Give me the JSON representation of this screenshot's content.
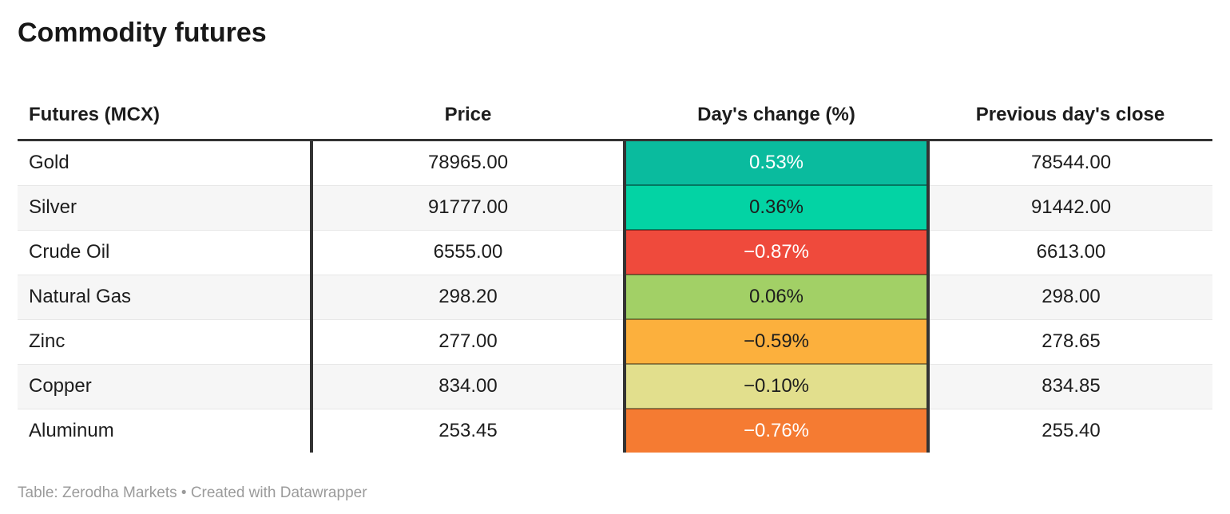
{
  "page": {
    "title": "Commodity futures",
    "footer": {
      "source": "Table: Zerodha Markets",
      "separator": "•",
      "credit": "Created with Datawrapper"
    }
  },
  "colors": {
    "header_border": "#333333",
    "column_divider": "#333333",
    "zebra_row": "#f6f6f6",
    "body_text": "#1d1d1d",
    "footer_text": "#9b9b9b",
    "positive_strong": "#0abb9e",
    "negative_strong": "#ef4a3c"
  },
  "table": {
    "columns": [
      {
        "label": "Futures (MCX)"
      },
      {
        "label": "Price"
      },
      {
        "label": "Day's change (%)"
      },
      {
        "label": "Previous day's close"
      }
    ],
    "rows": [
      {
        "name": "Gold",
        "price": "78965.00",
        "change": "0.53%",
        "change_bg": "#0abb9e",
        "change_fg": "#ffffff",
        "prev_close": "78544.00"
      },
      {
        "name": "Silver",
        "price": "91777.00",
        "change": "0.36%",
        "change_bg": "#03d3a4",
        "change_fg": "#1d1d1d",
        "prev_close": "91442.00"
      },
      {
        "name": "Crude Oil",
        "price": "6555.00",
        "change": "−0.87%",
        "change_bg": "#ef4a3c",
        "change_fg": "#ffffff",
        "prev_close": "6613.00"
      },
      {
        "name": "Natural Gas",
        "price": "298.20",
        "change": "0.06%",
        "change_bg": "#a2d066",
        "change_fg": "#1d1d1d",
        "prev_close": "298.00"
      },
      {
        "name": "Zinc",
        "price": "277.00",
        "change": "−0.59%",
        "change_bg": "#fcb03d",
        "change_fg": "#1d1d1d",
        "prev_close": "278.65"
      },
      {
        "name": "Copper",
        "price": "834.00",
        "change": "−0.10%",
        "change_bg": "#e2df8d",
        "change_fg": "#1d1d1d",
        "prev_close": "834.85"
      },
      {
        "name": "Aluminum",
        "price": "253.45",
        "change": "−0.76%",
        "change_bg": "#f57b32",
        "change_fg": "#ffffff",
        "prev_close": "255.40"
      }
    ]
  },
  "chart_data": {
    "type": "table",
    "title": "Commodity futures",
    "columns": [
      "Futures (MCX)",
      "Price",
      "Day's change (%)",
      "Previous day's close"
    ],
    "rows": [
      [
        "Gold",
        78965.0,
        0.53,
        78544.0
      ],
      [
        "Silver",
        91777.0,
        0.36,
        91442.0
      ],
      [
        "Crude Oil",
        6555.0,
        -0.87,
        6613.0
      ],
      [
        "Natural Gas",
        298.2,
        0.06,
        298.0
      ],
      [
        "Zinc",
        277.0,
        -0.59,
        278.65
      ],
      [
        "Copper",
        834.0,
        -0.1,
        834.85
      ],
      [
        "Aluminum",
        253.45,
        -0.76,
        255.4
      ]
    ],
    "layout_hints": "Day's change column is heatmap-colored: strong green for larger gains, red/orange for larger losses; zebra-striped rows; dark vertical dividers between columns"
  }
}
